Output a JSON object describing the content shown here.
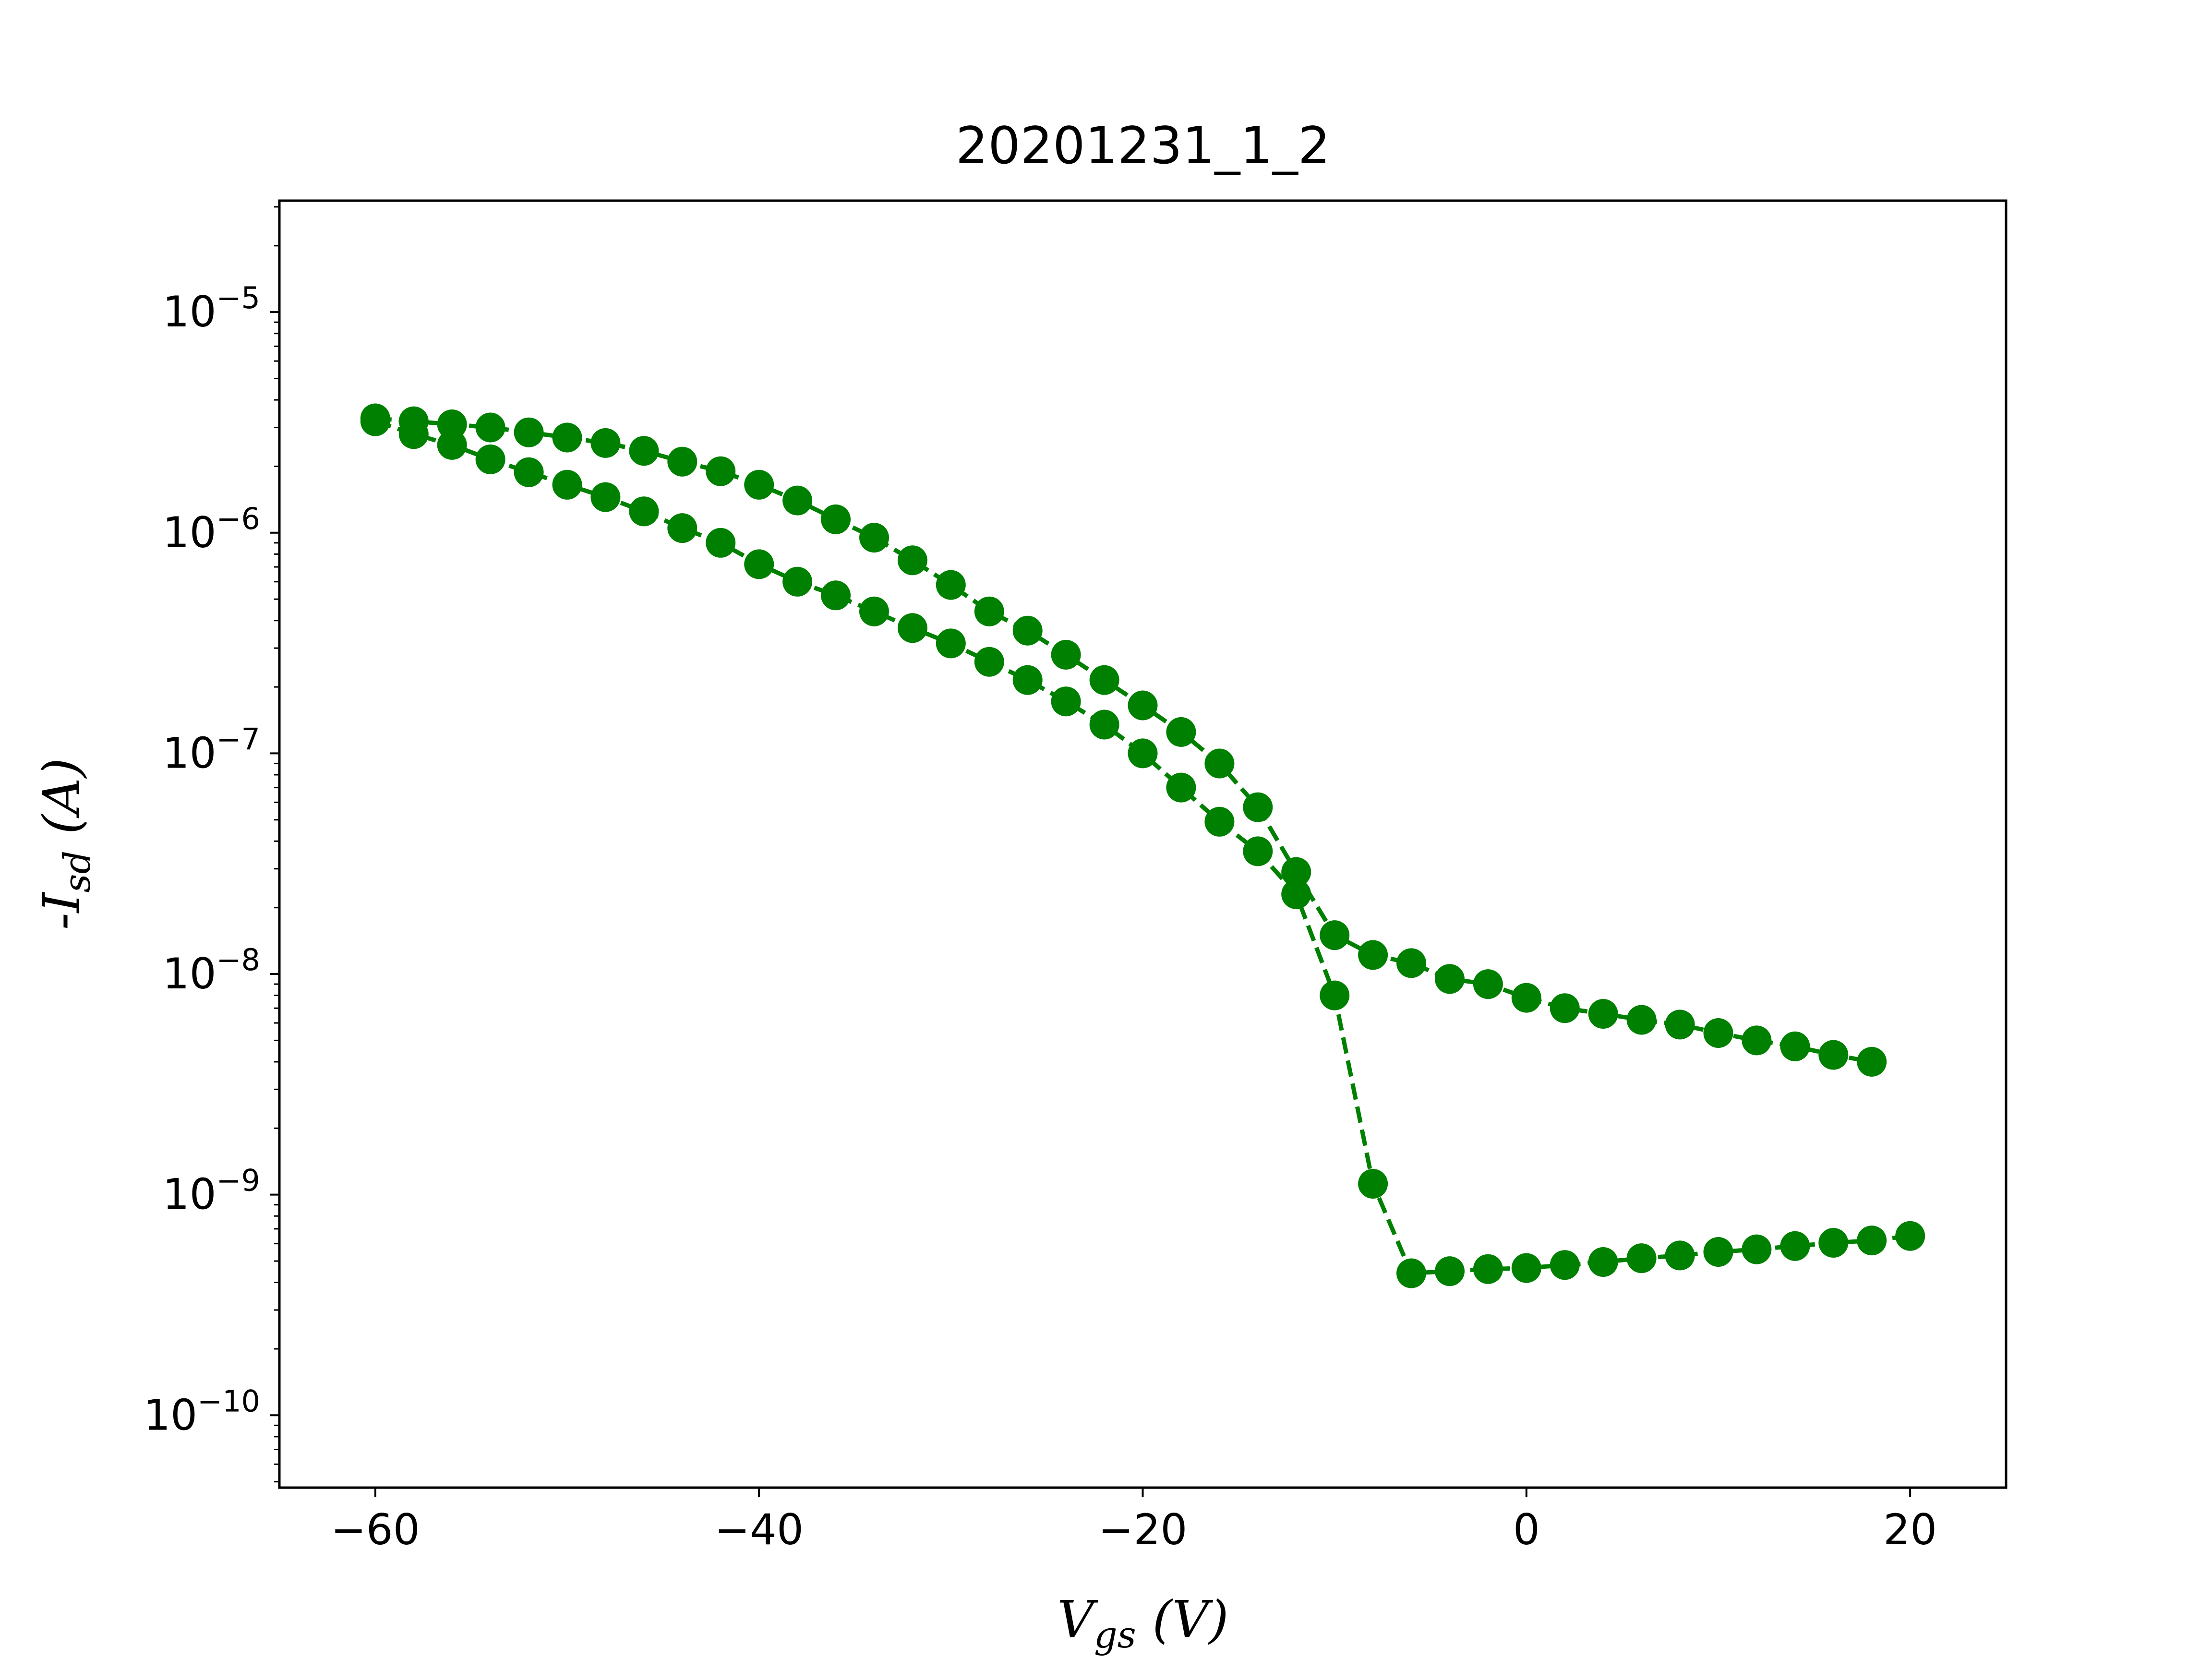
{
  "chart_data": {
    "type": "line",
    "title": "20201231_1_2",
    "xlabel": {
      "main": "V",
      "sub": "gs",
      "suffix": " (V)"
    },
    "ylabel": {
      "prefix": "-",
      "main": "I",
      "sub": "sd",
      "suffix": " (A)"
    },
    "xlim": [
      -65,
      25
    ],
    "ylim": [
      4.7e-11,
      3.2e-05
    ],
    "yscale": "log",
    "grid": false,
    "color": "#008000",
    "line_style": "dashed",
    "marker": "circle",
    "x_ticks": [
      {
        "value": -60,
        "label": "−60"
      },
      {
        "value": -40,
        "label": "−40"
      },
      {
        "value": -20,
        "label": "−20"
      },
      {
        "value": 0,
        "label": "0"
      },
      {
        "value": 20,
        "label": "20"
      }
    ],
    "y_ticks": [
      {
        "value": 1e-10,
        "base": "10",
        "exp": "−10"
      },
      {
        "value": 1e-09,
        "base": "10",
        "exp": "−9"
      },
      {
        "value": 1e-08,
        "base": "10",
        "exp": "−8"
      },
      {
        "value": 1e-07,
        "base": "10",
        "exp": "−7"
      },
      {
        "value": 1e-06,
        "base": "10",
        "exp": "−6"
      },
      {
        "value": 1e-05,
        "base": "10",
        "exp": "−5"
      }
    ],
    "series": [
      {
        "x": [
          -60,
          -58,
          -56,
          -54,
          -52,
          -50,
          -48,
          -46,
          -44,
          -42,
          -40,
          -38,
          -36,
          -34,
          -32,
          -30,
          -28,
          -26,
          -24,
          -22,
          -20,
          -18,
          -16,
          -14,
          -12,
          -10,
          -8,
          -6,
          -4,
          -2,
          0,
          2,
          4,
          6,
          8,
          10,
          12,
          14,
          16,
          18,
          20
        ],
        "y": [
          3.2e-06,
          2.8e-06,
          2.5e-06,
          2.15e-06,
          1.88e-06,
          1.65e-06,
          1.45e-06,
          1.25e-06,
          1.05e-06,
          9e-07,
          7.2e-07,
          6e-07,
          5.2e-07,
          4.4e-07,
          3.7e-07,
          3.15e-07,
          2.6e-07,
          2.15e-07,
          1.72e-07,
          1.35e-07,
          1e-07,
          7e-08,
          4.9e-08,
          3.6e-08,
          2.3e-08,
          8e-09,
          1.12e-09,
          4.4e-10,
          4.5e-10,
          4.6e-10,
          4.65e-10,
          4.8e-10,
          4.95e-10,
          5.15e-10,
          5.3e-10,
          5.5e-10,
          5.65e-10,
          5.85e-10,
          6.05e-10,
          6.2e-10,
          6.5e-10
        ]
      },
      {
        "x": [
          -60,
          -58,
          -56,
          -54,
          -52,
          -50,
          -48,
          -46,
          -44,
          -42,
          -40,
          -38,
          -36,
          -34,
          -32,
          -30,
          -28,
          -26,
          -24,
          -22,
          -20,
          -18,
          -16,
          -14,
          -12,
          -10,
          -8,
          -6,
          -4,
          -2,
          0,
          2,
          4,
          6,
          8,
          10,
          12,
          14,
          16,
          18
        ],
        "y": [
          3.3e-06,
          3.2e-06,
          3.1e-06,
          3e-06,
          2.85e-06,
          2.7e-06,
          2.55e-06,
          2.35e-06,
          2.1e-06,
          1.9e-06,
          1.65e-06,
          1.4e-06,
          1.15e-06,
          9.5e-07,
          7.5e-07,
          5.8e-07,
          4.4e-07,
          3.6e-07,
          2.8e-07,
          2.15e-07,
          1.65e-07,
          1.25e-07,
          9e-08,
          5.7e-08,
          2.9e-08,
          1.5e-08,
          1.22e-08,
          1.12e-08,
          9.5e-09,
          9e-09,
          7.8e-09,
          7e-09,
          6.6e-09,
          6.2e-09,
          5.9e-09,
          5.4e-09,
          5e-09,
          4.7e-09,
          4.3e-09,
          4e-09
        ]
      }
    ]
  }
}
